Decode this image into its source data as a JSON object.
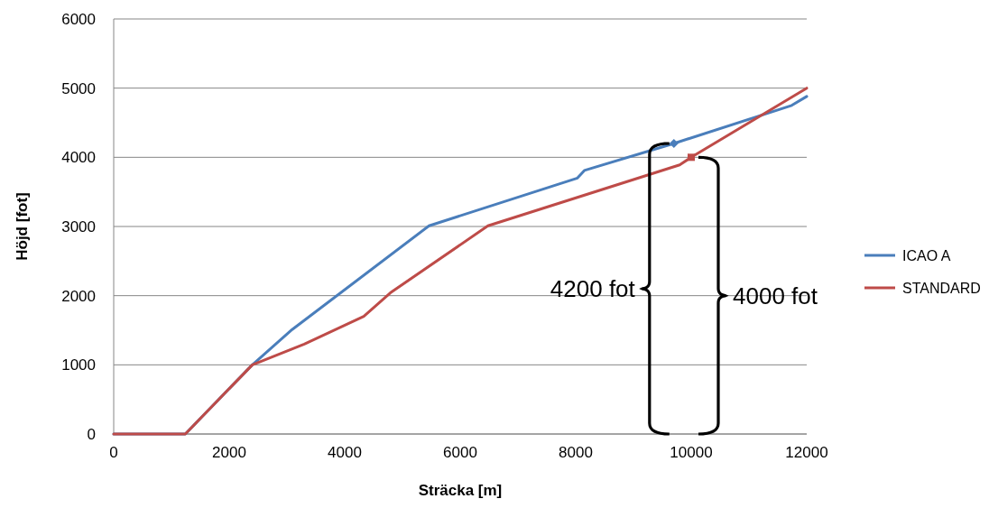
{
  "chart_data": {
    "type": "line",
    "xlabel": "Sträcka [m]",
    "ylabel": "Höjd [fot]",
    "xlim": [
      0,
      12000
    ],
    "ylim": [
      0,
      6000
    ],
    "xticks": [
      0,
      2000,
      4000,
      6000,
      8000,
      10000,
      12000
    ],
    "yticks": [
      0,
      1000,
      2000,
      3000,
      4000,
      5000,
      6000
    ],
    "grid": "y",
    "legend": "right",
    "marker": "none",
    "line_style": "solid",
    "series": [
      {
        "name": "ICAO A",
        "color": "#4a7ebb",
        "x": [
          0,
          1240,
          2400,
          3090,
          5460,
          8030,
          8150,
          9700,
          11740,
          12000
        ],
        "values": [
          0,
          0,
          1000,
          1510,
          3010,
          3700,
          3810,
          4200,
          4750,
          4880
        ]
      },
      {
        "name": "STANDARD",
        "color": "#be4b48",
        "x": [
          0,
          1240,
          2400,
          3300,
          4330,
          4790,
          6480,
          9800,
          10000,
          12000
        ],
        "values": [
          0,
          0,
          1000,
          1300,
          1700,
          2040,
          3010,
          3890,
          4000,
          5000
        ]
      },
      {
        "type": "scatter",
        "color": "#4a7ebb",
        "marker": "diamond",
        "x": [
          9700
        ],
        "values": [
          4200
        ]
      },
      {
        "type": "scatter",
        "color": "#be4b48",
        "marker": "square",
        "x": [
          10000
        ],
        "values": [
          4000
        ]
      }
    ],
    "annotations": [
      "4200 fot",
      "4000 fot"
    ]
  }
}
